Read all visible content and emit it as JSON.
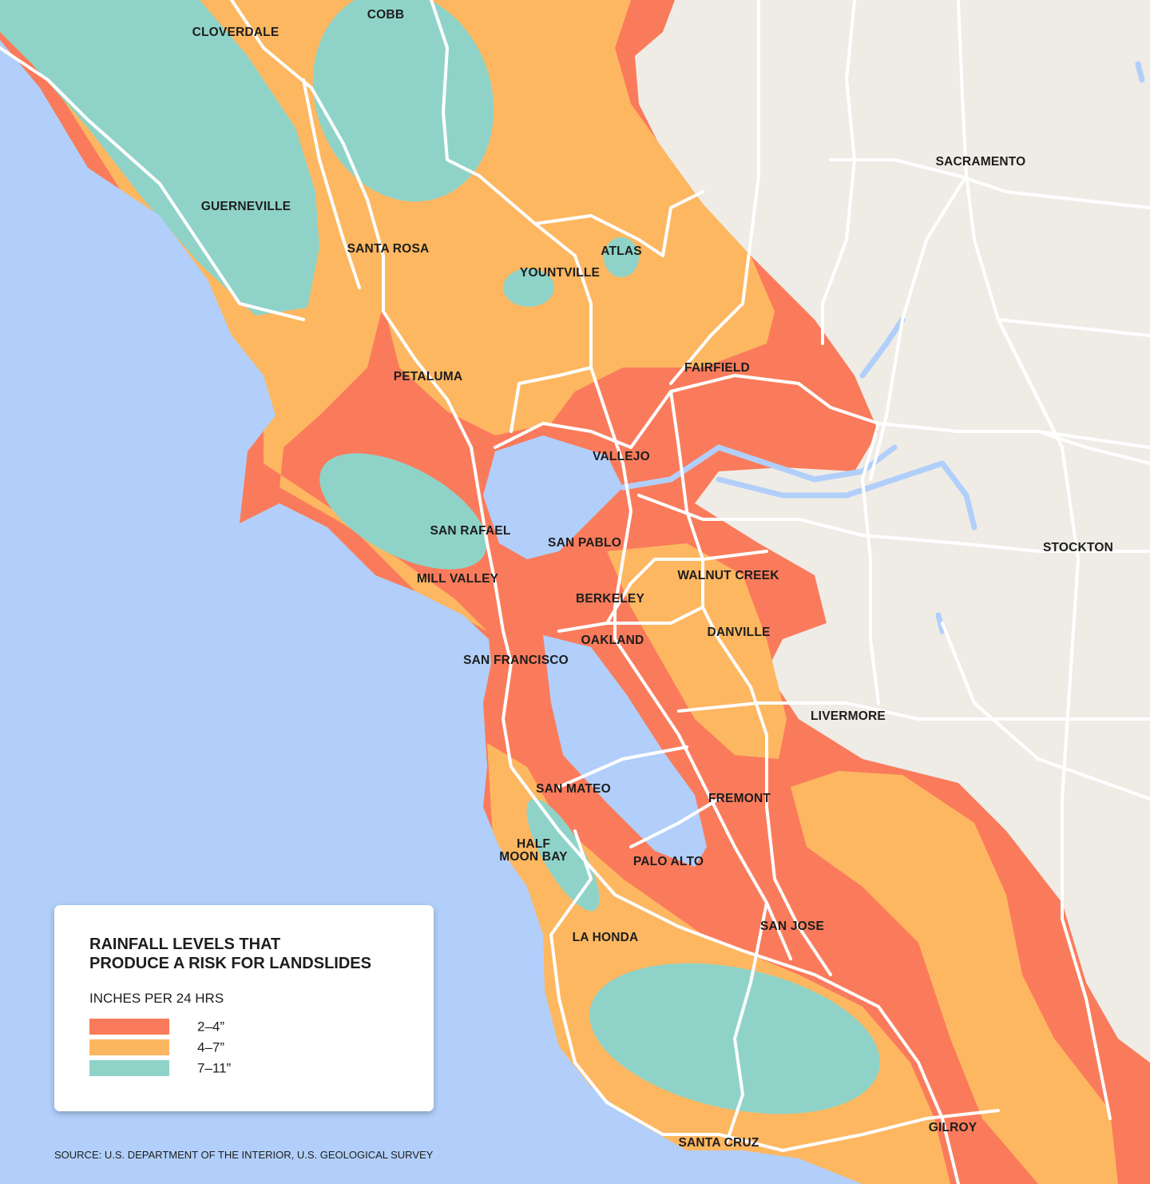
{
  "map": {
    "cities": [
      [
        "COBB"
      ],
      [
        "CLOVERDALE"
      ],
      [
        "SACRAMENTO"
      ],
      [
        "GUERNEVILLE"
      ],
      [
        "SANTA ROSA"
      ],
      [
        "ATLAS"
      ],
      [
        "YOUNTVILLE"
      ],
      [
        "FAIRFIELD"
      ],
      [
        "PETALUMA"
      ],
      [
        "VALLEJO"
      ],
      [
        "SAN RAFAEL"
      ],
      [
        "SAN PABLO"
      ],
      [
        "STOCKTON"
      ],
      [
        "WALNUT CREEK"
      ],
      [
        "MILL VALLEY"
      ],
      [
        "BERKELEY"
      ],
      [
        "DANVILLE"
      ],
      [
        "OAKLAND"
      ],
      [
        "SAN FRANCISCO"
      ],
      [
        "LIVERMORE"
      ],
      [
        "SAN MATEO"
      ],
      [
        "FREMONT"
      ],
      [
        "HALF",
        "MOON BAY"
      ],
      [
        "PALO ALTO"
      ],
      [
        "LA HONDA"
      ],
      [
        "SAN JOSE"
      ],
      [
        "GILROY"
      ],
      [
        "SANTA CRUZ"
      ]
    ]
  },
  "legend": {
    "title": [
      "RAINFALL LEVELS THAT",
      "PRODUCE A RISK FOR LANDSLIDES"
    ],
    "subtitle": "INCHES PER 24 HRS",
    "items": [
      {
        "label": "2–4”",
        "color": "#fa7b5b"
      },
      {
        "label": "4–7”",
        "color": "#fdb761"
      },
      {
        "label": "7–11”",
        "color": "#8fd3c8"
      }
    ]
  },
  "source": "SOURCE: U.S. DEPARTMENT OF THE INTERIOR, U.S. GEOLOGICAL SURVEY"
}
